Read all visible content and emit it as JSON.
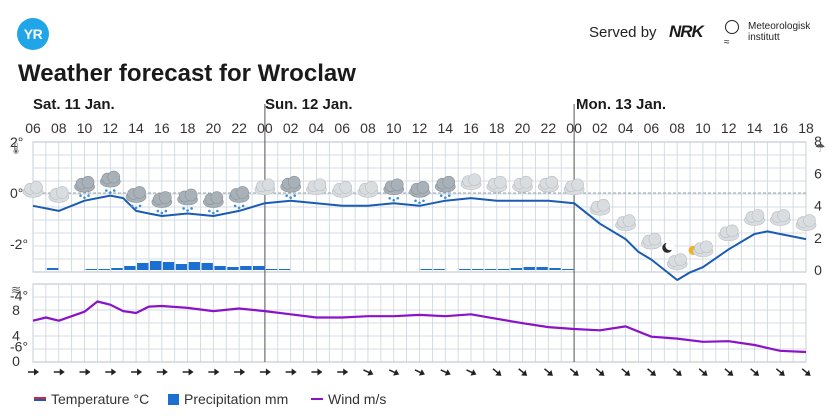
{
  "header": {
    "logo_text": "YR",
    "served_by": "Served by",
    "nrk_logo": "NRK",
    "met_line1": "Meteorologisk",
    "met_line2": "institutt",
    "title": "Weather forecast for Wroclaw"
  },
  "days": [
    "Sat. 11 Jan.",
    "Sun. 12 Jan.",
    "Mon. 13 Jan."
  ],
  "legend": {
    "temperature": "Temperature °C",
    "precipitation": "Precipitation mm",
    "wind": "Wind m/s"
  },
  "colors": {
    "temperature": "#1a5bb5",
    "precipitation": "#1a6fd1",
    "wind": "#8a12c7",
    "grid": "#c9d3dc",
    "day_separator": "#555555",
    "logo": "#20a5e8"
  },
  "chart_data": {
    "type": "line",
    "x_tick_labels": [
      "06",
      "08",
      "10",
      "12",
      "14",
      "16",
      "18",
      "20",
      "22",
      "00",
      "02",
      "04",
      "06",
      "08",
      "10",
      "12",
      "14",
      "16",
      "18",
      "20",
      "22",
      "00",
      "02",
      "04",
      "06",
      "08",
      "10",
      "12",
      "14",
      "16",
      "18"
    ],
    "x_hours_from_start": [
      0,
      2,
      4,
      6,
      8,
      10,
      12,
      14,
      16,
      18,
      20,
      22,
      24,
      26,
      28,
      30,
      32,
      34,
      36,
      38,
      40,
      42,
      44,
      46,
      48,
      50,
      52,
      54,
      56,
      58,
      60
    ],
    "temperature_panel": {
      "y_tick_labels_left": [
        "2°",
        "0°",
        "-2°",
        "-4°",
        "-6°"
      ],
      "y_ticks_left": [
        2,
        0,
        -2,
        -4,
        -6
      ],
      "ylim_left": [
        -6,
        2
      ],
      "y_tick_labels_right": [
        "8",
        "6",
        "4",
        "2",
        "0"
      ],
      "y_ticks_right": [
        8,
        6,
        4,
        2,
        0
      ],
      "ylim_right": [
        0,
        8
      ]
    },
    "wind_panel": {
      "y_tick_labels": [
        "8",
        "4",
        "0"
      ],
      "y_ticks": [
        8,
        4,
        0
      ],
      "ylim": [
        0,
        12
      ]
    },
    "series": [
      {
        "name": "Temperature °C",
        "hours": [
          0,
          2,
          4,
          6,
          7,
          8,
          9,
          10,
          12,
          14,
          16,
          18,
          20,
          22,
          24,
          26,
          28,
          30,
          32,
          34,
          36,
          38,
          40,
          42,
          44,
          46,
          47,
          48,
          50,
          51,
          52,
          54,
          56,
          57,
          58,
          60
        ],
        "values": [
          -0.5,
          -0.7,
          -0.3,
          -0.1,
          -0.2,
          -0.7,
          -0.8,
          -0.9,
          -0.8,
          -0.9,
          -0.7,
          -0.4,
          -0.3,
          -0.4,
          -0.5,
          -0.5,
          -0.4,
          -0.5,
          -0.3,
          -0.2,
          -0.3,
          -0.3,
          -0.3,
          -0.4,
          -1.2,
          -1.8,
          -2.3,
          -2.6,
          -3.4,
          -3.1,
          -2.9,
          -2.2,
          -1.6,
          -1.5,
          -1.6,
          -1.8
        ]
      },
      {
        "name": "Precipitation mm",
        "hours": [
          1,
          4,
          5,
          6,
          7,
          8,
          9,
          10,
          11,
          12,
          13,
          14,
          15,
          16,
          17,
          18,
          19,
          30,
          31,
          33,
          34,
          35,
          36,
          37,
          38,
          39,
          40,
          41
        ],
        "values": [
          0.2,
          0.1,
          0.1,
          0.2,
          0.4,
          0.7,
          0.9,
          0.8,
          0.6,
          0.8,
          0.7,
          0.4,
          0.3,
          0.4,
          0.4,
          0.1,
          0.1,
          0.1,
          0.1,
          0.1,
          0.1,
          0.1,
          0.1,
          0.2,
          0.3,
          0.3,
          0.2,
          0.1
        ]
      },
      {
        "name": "Wind m/s",
        "hours": [
          0,
          1,
          2,
          3,
          4,
          5,
          6,
          7,
          8,
          9,
          10,
          12,
          14,
          16,
          18,
          20,
          22,
          24,
          26,
          28,
          30,
          32,
          34,
          36,
          38,
          40,
          42,
          44,
          46,
          48,
          50,
          52,
          54,
          56,
          58,
          60
        ],
        "values": [
          6.3,
          6.8,
          6.3,
          7.0,
          7.7,
          9.3,
          8.8,
          7.8,
          7.5,
          8.5,
          8.6,
          8.3,
          7.8,
          8.2,
          7.8,
          7.3,
          6.8,
          6.8,
          7.0,
          7.0,
          7.2,
          7.0,
          7.3,
          6.6,
          5.9,
          5.3,
          5.0,
          4.8,
          5.4,
          3.8,
          3.5,
          3.0,
          3.1,
          2.5,
          1.6,
          1.4
        ]
      }
    ],
    "weather_symbols": [
      {
        "hour": 0,
        "type": "cloud"
      },
      {
        "hour": 2,
        "type": "cloud"
      },
      {
        "hour": 4,
        "type": "snow"
      },
      {
        "hour": 6,
        "type": "snow"
      },
      {
        "hour": 8,
        "type": "snow"
      },
      {
        "hour": 10,
        "type": "snow"
      },
      {
        "hour": 12,
        "type": "snow"
      },
      {
        "hour": 14,
        "type": "snow"
      },
      {
        "hour": 16,
        "type": "snow"
      },
      {
        "hour": 18,
        "type": "cloud"
      },
      {
        "hour": 20,
        "type": "snow"
      },
      {
        "hour": 22,
        "type": "cloud"
      },
      {
        "hour": 24,
        "type": "cloud"
      },
      {
        "hour": 26,
        "type": "cloud"
      },
      {
        "hour": 28,
        "type": "snow"
      },
      {
        "hour": 30,
        "type": "snow"
      },
      {
        "hour": 32,
        "type": "snow"
      },
      {
        "hour": 34,
        "type": "cloud"
      },
      {
        "hour": 36,
        "type": "cloud"
      },
      {
        "hour": 38,
        "type": "cloud"
      },
      {
        "hour": 40,
        "type": "cloud"
      },
      {
        "hour": 42,
        "type": "cloud"
      },
      {
        "hour": 44,
        "type": "cloud"
      },
      {
        "hour": 46,
        "type": "cloud"
      },
      {
        "hour": 48,
        "type": "cloud"
      },
      {
        "hour": 49,
        "type": "moon"
      },
      {
        "hour": 50,
        "type": "cloud"
      },
      {
        "hour": 51,
        "type": "sun"
      },
      {
        "hour": 52,
        "type": "cloud"
      },
      {
        "hour": 54,
        "type": "cloud"
      },
      {
        "hour": 56,
        "type": "cloud"
      },
      {
        "hour": 58,
        "type": "cloud"
      },
      {
        "hour": 60,
        "type": "cloud"
      }
    ],
    "wind_arrows": "per tick, pointing right at start and turning to down-right",
    "grid": true
  }
}
